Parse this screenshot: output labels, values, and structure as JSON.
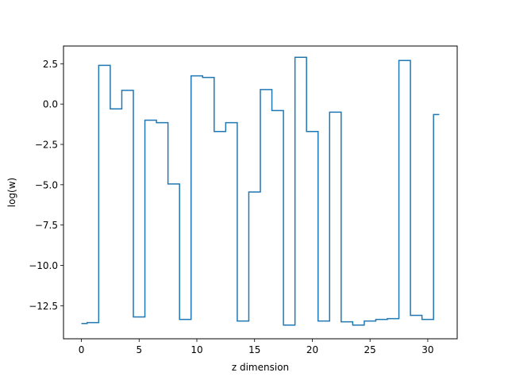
{
  "chart_data": {
    "type": "line",
    "drawstyle": "steps-mid",
    "title": "",
    "xlabel": "z dimension",
    "ylabel": "log(w)",
    "xlim": [
      -1.55,
      32.55
    ],
    "ylim": [
      -14.55,
      3.6
    ],
    "grid": false,
    "xticks": [
      0,
      5,
      10,
      15,
      20,
      25,
      30
    ],
    "xtick_labels": [
      "0",
      "5",
      "10",
      "15",
      "20",
      "25",
      "30"
    ],
    "yticks": [
      2.5,
      0.0,
      -2.5,
      -5.0,
      -7.5,
      -10.0,
      -12.5
    ],
    "ytick_labels": [
      "2.5",
      "0.0",
      "−2.5",
      "−5.0",
      "−7.5",
      "−10.0",
      "−12.5"
    ],
    "series": [
      {
        "color": "#1f77b4",
        "x": [
          0,
          1,
          2,
          3,
          4,
          5,
          6,
          7,
          8,
          9,
          10,
          11,
          12,
          13,
          14,
          15,
          16,
          17,
          18,
          19,
          20,
          21,
          22,
          23,
          24,
          25,
          26,
          27,
          28,
          29,
          30,
          31
        ],
        "values": [
          -13.6,
          -13.55,
          2.4,
          -0.3,
          0.85,
          -13.2,
          -1.0,
          -1.15,
          -4.95,
          -13.35,
          1.75,
          1.65,
          -1.7,
          -1.15,
          -13.45,
          -5.45,
          0.9,
          -0.4,
          -13.7,
          2.9,
          -1.7,
          -13.45,
          -0.5,
          -13.5,
          -13.7,
          -13.45,
          -13.35,
          -13.3,
          2.7,
          -13.1,
          -13.35,
          -0.65
        ]
      }
    ]
  }
}
